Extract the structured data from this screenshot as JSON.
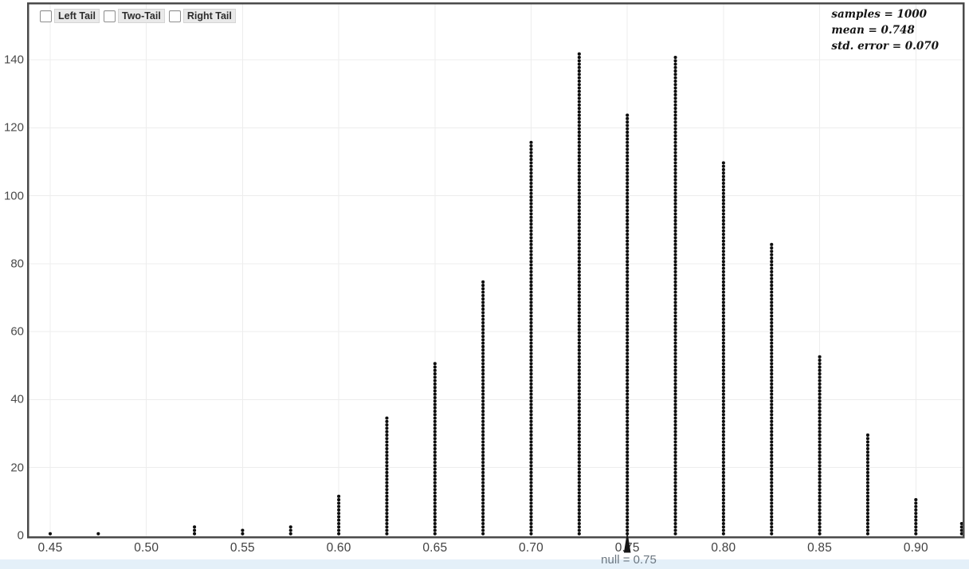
{
  "controls": {
    "checkboxes": [
      {
        "label": "Left Tail",
        "checked": false
      },
      {
        "label": "Two-Tail",
        "checked": false
      },
      {
        "label": "Right Tail",
        "checked": false
      }
    ]
  },
  "stats": {
    "samples": "samples = 1000",
    "mean": "mean = 0.748",
    "std_error": "std. error = 0.070"
  },
  "null_marker": {
    "label": "null = 0.75",
    "value": 0.75
  },
  "colors": {
    "dot": "#0e0e0e",
    "axis": "#4a4a4a",
    "grid": "#ededed",
    "tick_text": "#414141",
    "null_text": "#6b7680",
    "arrow": "#161616",
    "strip": "#e4f0f9",
    "chip_bg": "#e9e9e9"
  },
  "chart_data": {
    "type": "bar",
    "style": "dotplot",
    "title": "",
    "xlabel": "",
    "ylabel": "",
    "xlim": [
      0.438,
      0.925
    ],
    "ylim": [
      0,
      157
    ],
    "grid": true,
    "total_samples": 1000,
    "null_value": 0.75,
    "x_ticks": [
      {
        "v": 0.45,
        "label": "0.45"
      },
      {
        "v": 0.5,
        "label": "0.50"
      },
      {
        "v": 0.55,
        "label": "0.55"
      },
      {
        "v": 0.6,
        "label": "0.60"
      },
      {
        "v": 0.65,
        "label": "0.65"
      },
      {
        "v": 0.7,
        "label": "0.70"
      },
      {
        "v": 0.75,
        "label": "0.75"
      },
      {
        "v": 0.8,
        "label": "0.80"
      },
      {
        "v": 0.85,
        "label": "0.85"
      },
      {
        "v": 0.9,
        "label": "0.90"
      }
    ],
    "y_ticks": [
      {
        "v": 0,
        "label": "0"
      },
      {
        "v": 20,
        "label": "20"
      },
      {
        "v": 40,
        "label": "40"
      },
      {
        "v": 60,
        "label": "60"
      },
      {
        "v": 80,
        "label": "80"
      },
      {
        "v": 100,
        "label": "100"
      },
      {
        "v": 120,
        "label": "120"
      },
      {
        "v": 140,
        "label": "140"
      }
    ],
    "columns": [
      {
        "x": 0.45,
        "count": 1
      },
      {
        "x": 0.475,
        "count": 1
      },
      {
        "x": 0.525,
        "count": 3
      },
      {
        "x": 0.55,
        "count": 2
      },
      {
        "x": 0.575,
        "count": 3
      },
      {
        "x": 0.6,
        "count": 12
      },
      {
        "x": 0.625,
        "count": 35
      },
      {
        "x": 0.65,
        "count": 51
      },
      {
        "x": 0.675,
        "count": 75
      },
      {
        "x": 0.7,
        "count": 116
      },
      {
        "x": 0.725,
        "count": 142
      },
      {
        "x": 0.75,
        "count": 124
      },
      {
        "x": 0.775,
        "count": 141
      },
      {
        "x": 0.8,
        "count": 110
      },
      {
        "x": 0.825,
        "count": 86
      },
      {
        "x": 0.85,
        "count": 53
      },
      {
        "x": 0.875,
        "count": 30
      },
      {
        "x": 0.9,
        "count": 11
      },
      {
        "x": 0.925,
        "count": 4
      }
    ]
  }
}
